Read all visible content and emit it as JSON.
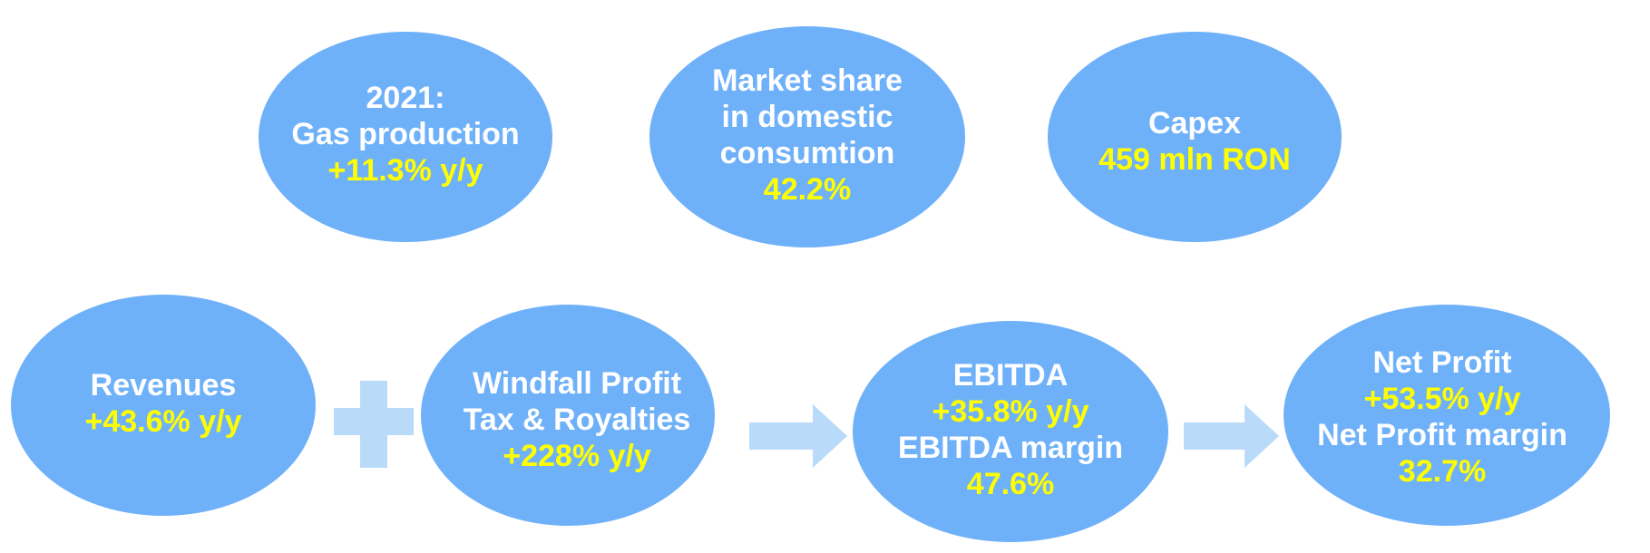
{
  "bubbles": [
    {
      "lines": [
        {
          "text": "2021:",
          "color": "#ffffff"
        },
        {
          "text": "Gas production",
          "color": "#ffffff"
        },
        {
          "text": "+11.3% y/y",
          "color": "#ffff00"
        }
      ]
    },
    {
      "lines": [
        {
          "text": "Market share",
          "color": "#ffffff"
        },
        {
          "text": "in domestic",
          "color": "#ffffff"
        },
        {
          "text": "consumtion",
          "color": "#ffffff"
        },
        {
          "text": "42.2%",
          "color": "#ffff00"
        }
      ]
    },
    {
      "lines": [
        {
          "text": "Capex",
          "color": "#ffffff"
        },
        {
          "text": "459 mln RON",
          "color": "#ffff00"
        }
      ]
    },
    {
      "lines": [
        {
          "text": "Revenues",
          "color": "#ffffff"
        },
        {
          "text": "+43.6% y/y",
          "color": "#ffff00"
        }
      ]
    },
    {
      "lines": [
        {
          "text": "Windfall Profit",
          "color": "#ffffff"
        },
        {
          "text": "Tax & Royalties",
          "color": "#ffffff"
        },
        {
          "text": "+228% y/y",
          "color": "#ffff00"
        }
      ]
    },
    {
      "lines": [
        {
          "text": "EBITDA",
          "color": "#ffffff"
        },
        {
          "text": "+35.8% y/y",
          "color": "#ffff00"
        },
        {
          "text": "EBITDA margin",
          "color": "#ffffff"
        },
        {
          "text": "47.6%",
          "color": "#ffff00"
        }
      ]
    },
    {
      "lines": [
        {
          "text": "Net Profit",
          "color": "#ffffff"
        },
        {
          "text": "+53.5% y/y",
          "color": "#ffff00"
        },
        {
          "text": "Net Profit margin",
          "color": "#ffffff"
        },
        {
          "text": "32.7%",
          "color": "#ffff00"
        }
      ]
    }
  ]
}
